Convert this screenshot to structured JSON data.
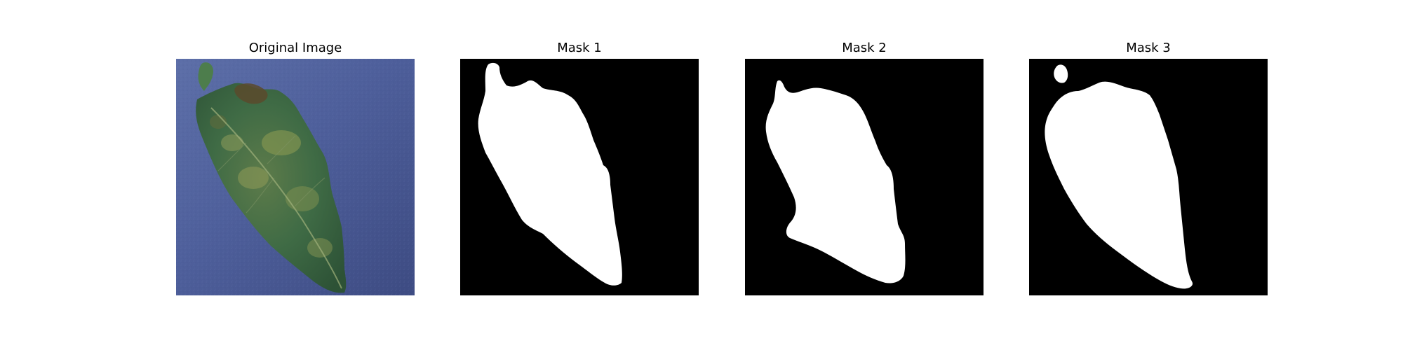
{
  "figure": {
    "panels": [
      {
        "title": "Original Image",
        "kind": "photo",
        "subject": "leaf-photo"
      },
      {
        "title": "Mask 1",
        "kind": "mask",
        "subject": "leaf-mask"
      },
      {
        "title": "Mask 2",
        "kind": "mask",
        "subject": "leaf-mask"
      },
      {
        "title": "Mask 3",
        "kind": "mask",
        "subject": "leaf-mask"
      }
    ]
  },
  "colors": {
    "mask_background": "#000000",
    "mask_foreground": "#ffffff",
    "photo_background": "#4a5a94",
    "leaf_green": "#3f6b45"
  }
}
